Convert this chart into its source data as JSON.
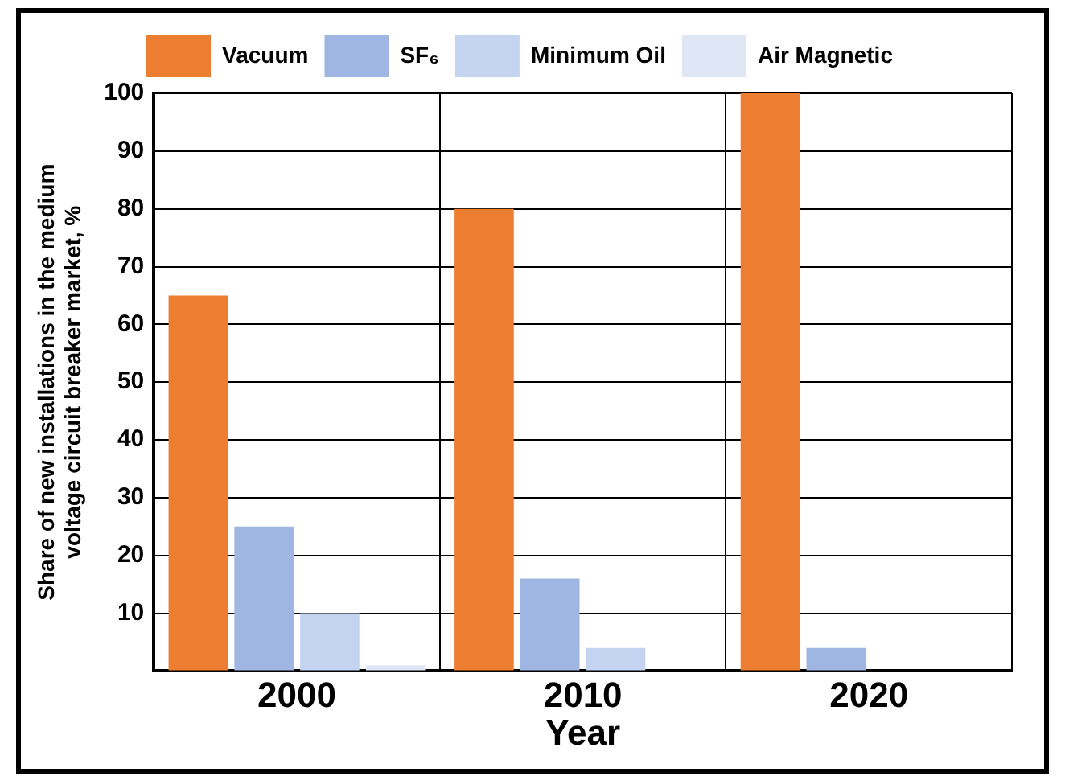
{
  "chart_data": {
    "type": "bar",
    "categories": [
      "2000",
      "2010",
      "2020"
    ],
    "series": [
      {
        "name": "Vacuum",
        "color": "#ed7d31",
        "values": [
          65,
          80,
          100
        ]
      },
      {
        "name": "SF₆",
        "color": "#9fb6e3",
        "values": [
          25,
          16,
          4
        ]
      },
      {
        "name": "Minimum Oil",
        "color": "#c4d3ef",
        "values": [
          10,
          4,
          null
        ]
      },
      {
        "name": "Air Magnetic",
        "color": "#dfe7f6",
        "values": [
          1,
          null,
          null
        ]
      }
    ],
    "xlabel": "Year",
    "ylabel": "Share of new installations in the medium voltage circuit breaker market, %",
    "ylim": [
      0,
      100
    ],
    "yticks": [
      {
        "value": 0,
        "label": null
      },
      10,
      20,
      30,
      40,
      50,
      60,
      70,
      80,
      90,
      100
    ],
    "grid": true,
    "legend": "top"
  }
}
